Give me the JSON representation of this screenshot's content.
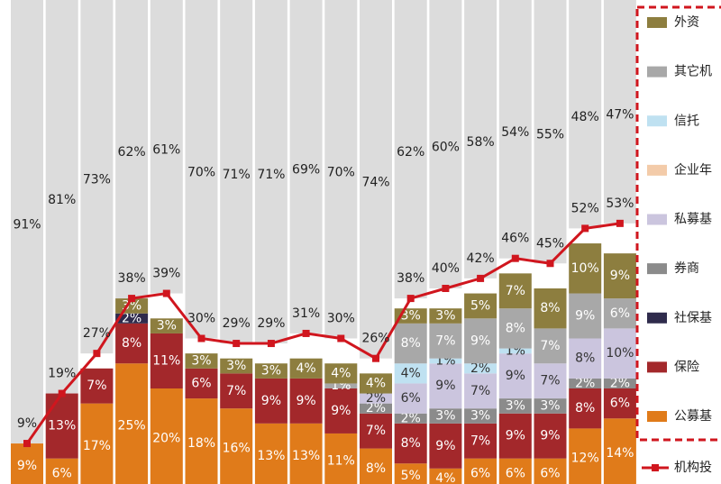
{
  "chart_data": {
    "type": "stacked_bar_line",
    "ylim": [
      0,
      100
    ],
    "series": [
      {
        "name": "公募基",
        "color": "#e07b1a",
        "values": [
          9,
          6,
          17,
          25,
          20,
          18,
          16,
          13,
          13,
          11,
          8,
          5,
          4,
          6,
          6,
          6,
          12,
          14
        ],
        "value_labels": [
          "9%",
          "6%",
          "17%",
          "25%",
          "20%",
          "18%",
          "16%",
          "13%",
          "13%",
          "11%",
          "8%",
          "5%",
          "4%",
          "6%",
          "6%",
          "6%",
          "12%",
          "14%"
        ]
      },
      {
        "name": "保险",
        "color": "#a3282b",
        "values": [
          null,
          13,
          7,
          8,
          11,
          6,
          7,
          9,
          9,
          9,
          7,
          8,
          9,
          7,
          9,
          9,
          8,
          6
        ],
        "value_labels": [
          null,
          "13%",
          "7%",
          "8%",
          "11%",
          "6%",
          "7%",
          "9%",
          "9%",
          "9%",
          "7%",
          "8%",
          "9%",
          "7%",
          "9%",
          "9%",
          "8%",
          "6%"
        ]
      },
      {
        "name": "社保基",
        "color": "#2f2b4c",
        "values": [
          null,
          null,
          null,
          2,
          null,
          null,
          null,
          null,
          null,
          null,
          null,
          null,
          null,
          null,
          null,
          null,
          null,
          null
        ],
        "value_labels": [
          null,
          null,
          null,
          "2%",
          null,
          null,
          null,
          null,
          null,
          null,
          null,
          null,
          null,
          null,
          null,
          null,
          null,
          null
        ]
      },
      {
        "name": "券商",
        "color": "#8b8b8b",
        "values": [
          null,
          null,
          null,
          null,
          null,
          null,
          null,
          null,
          null,
          null,
          2,
          2,
          3,
          3,
          3,
          3,
          2,
          2
        ],
        "value_labels": [
          null,
          null,
          null,
          null,
          null,
          null,
          null,
          null,
          null,
          null,
          "2%",
          "2%",
          "3%",
          "3%",
          "3%",
          "3%",
          "2%",
          "2%"
        ]
      },
      {
        "name": "私募基",
        "color": "#cbc5de",
        "values": [
          null,
          null,
          null,
          null,
          null,
          null,
          null,
          null,
          null,
          null,
          2,
          6,
          9,
          7,
          9,
          7,
          8,
          10
        ],
        "value_labels": [
          null,
          null,
          null,
          null,
          null,
          null,
          null,
          null,
          null,
          null,
          "2%",
          "6%",
          "9%",
          "7%",
          "9%",
          "7%",
          "8%",
          "10%"
        ]
      },
      {
        "name": "企业年",
        "color": "#f3cba9",
        "values": [
          null,
          null,
          null,
          null,
          null,
          null,
          null,
          null,
          null,
          null,
          null,
          null,
          null,
          null,
          null,
          null,
          null,
          null
        ]
      },
      {
        "name": "信托",
        "color": "#bfe1f1",
        "values": [
          null,
          null,
          null,
          null,
          null,
          null,
          null,
          null,
          null,
          null,
          null,
          4,
          1,
          2,
          1,
          null,
          null,
          null
        ],
        "value_labels": [
          null,
          null,
          null,
          null,
          null,
          null,
          null,
          null,
          null,
          null,
          null,
          "4%",
          "1%",
          "2%",
          "1%",
          null,
          null,
          null
        ]
      },
      {
        "name": "其它机",
        "color": "#a8a8a8",
        "values": [
          null,
          null,
          null,
          null,
          null,
          null,
          null,
          null,
          null,
          1,
          null,
          8,
          7,
          9,
          8,
          7,
          9,
          6
        ],
        "value_labels": [
          null,
          null,
          null,
          null,
          null,
          null,
          null,
          null,
          null,
          "1%",
          null,
          "8%",
          "7%",
          "9%",
          "8%",
          "7%",
          "9%",
          "6%"
        ]
      },
      {
        "name": "外资",
        "color": "#8d7e3f",
        "values": [
          null,
          null,
          null,
          3,
          3,
          3,
          3,
          3,
          4,
          4,
          4,
          3,
          3,
          5,
          7,
          8,
          10,
          9
        ],
        "value_labels": [
          null,
          null,
          null,
          "3%",
          "3%",
          "3%",
          "3%",
          "3%",
          "4%",
          "4%",
          "4%",
          "3%",
          "3%",
          "5%",
          "7%",
          "8%",
          "10%",
          "9%"
        ]
      }
    ],
    "line": {
      "name": "机构投",
      "color": "#d0161e",
      "values": [
        9,
        19,
        27,
        38,
        39,
        30,
        29,
        29,
        31,
        30,
        26,
        38,
        40,
        42,
        46,
        45,
        52,
        53
      ],
      "value_labels": [
        "9%",
        "19%",
        "27%",
        "38%",
        "39%",
        "30%",
        "29%",
        "29%",
        "31%",
        "30%",
        "26%",
        "38%",
        "40%",
        "42%",
        "46%",
        "45%",
        "52%",
        "53%"
      ]
    },
    "remainder": {
      "color": "#dcdcdc",
      "values": [
        91,
        81,
        73,
        62,
        61,
        70,
        71,
        71,
        69,
        70,
        74,
        62,
        60,
        58,
        54,
        55,
        48,
        47
      ],
      "value_labels": [
        "91%",
        "81%",
        "73%",
        "62%",
        "61%",
        "70%",
        "71%",
        "71%",
        "69%",
        "70%",
        "74%",
        "62%",
        "60%",
        "58%",
        "54%",
        "55%",
        "48%",
        "47%"
      ]
    }
  }
}
